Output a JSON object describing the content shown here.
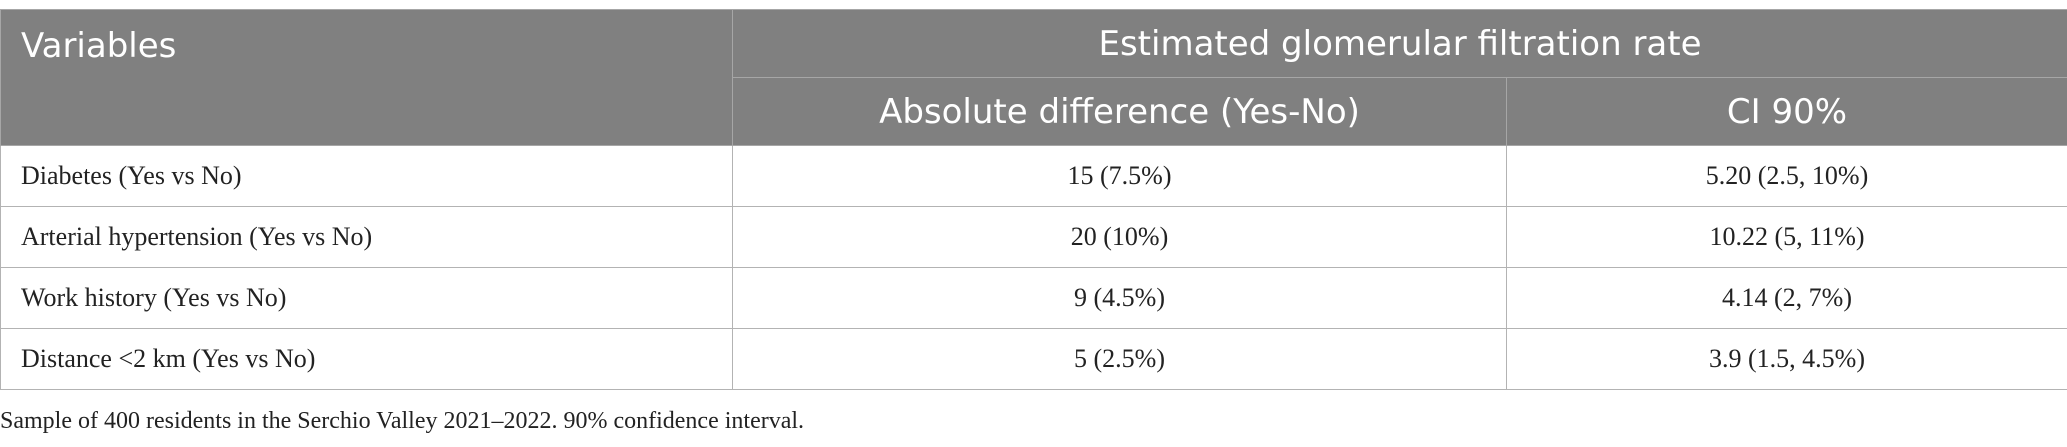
{
  "table": {
    "header": {
      "variables": "Variables",
      "group": "Estimated glomerular filtration rate",
      "col_diff": "Absolute difference (Yes-No)",
      "col_ci": "CI 90%"
    },
    "rows": [
      {
        "variable": "Diabetes (Yes vs No)",
        "diff": "15 (7.5%)",
        "ci": "5.20 (2.5, 10%)"
      },
      {
        "variable": "Arterial hypertension (Yes vs No)",
        "diff": "20 (10%)",
        "ci": "10.22 (5, 11%)"
      },
      {
        "variable": "Work history (Yes vs No)",
        "diff": "9 (4.5%)",
        "ci": "4.14 (2, 7%)"
      },
      {
        "variable": "Distance <2 km (Yes vs No)",
        "diff": "5 (2.5%)",
        "ci": "3.9 (1.5, 4.5%)"
      }
    ]
  },
  "footnote": "Sample of 400 residents in the Serchio Valley 2021–2022. 90% confidence interval."
}
